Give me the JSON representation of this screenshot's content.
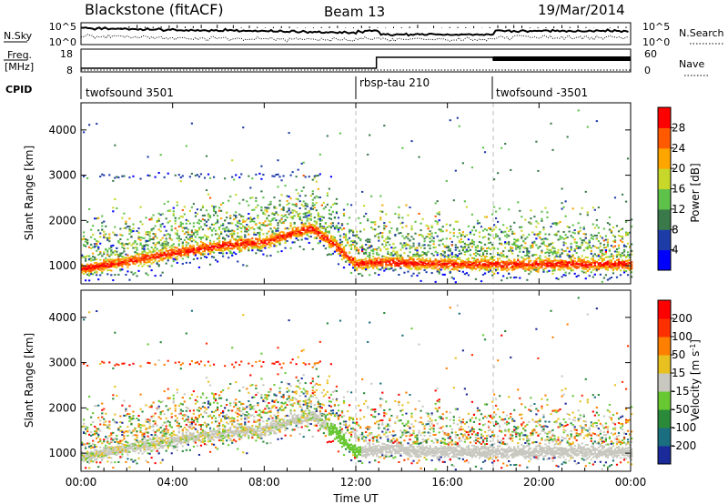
{
  "header": {
    "station": "Blackstone (fitACF)",
    "beam": "Beam 13",
    "date": "19/Mar/2014"
  },
  "nsky_panel": {
    "left_label": "N.Sky",
    "right_label": "N.Search",
    "left_ticks": [
      "10^5",
      "10^0"
    ],
    "right_ticks": [
      "10^5",
      "10^0"
    ]
  },
  "freq_panel": {
    "left_label_line1": "Freq.",
    "left_label_line2": "[MHz]",
    "left_ticks": [
      "18",
      "8"
    ],
    "right_label": "Nave",
    "right_ticks": [
      "60",
      "0"
    ]
  },
  "cpid_panel": {
    "label": "CPID",
    "segments": [
      {
        "name": "twofsound 3501",
        "start_hour": 0
      },
      {
        "name": "rbsp-tau 210",
        "start_hour": 12
      },
      {
        "name": "twofsound -3501",
        "start_hour": 18
      }
    ]
  },
  "chart_data": [
    {
      "type": "heatmap",
      "panel": "power",
      "ylabel": "Slant Range [km]",
      "xlim_hours": [
        0,
        24
      ],
      "ylim": [
        600,
        4600
      ],
      "yticks": [
        1000,
        2000,
        3000,
        4000
      ],
      "colorbar": {
        "label": "Power [dB]",
        "ticks": [
          "28",
          "24",
          "20",
          "16",
          "12",
          "8",
          "4"
        ],
        "colors": [
          "#0000ff",
          "#1e3ca8",
          "#3a7a4a",
          "#5ec24a",
          "#c8d82a",
          "#ffa500",
          "#ff5a00",
          "#ff0000"
        ]
      },
      "main_band_km": [
        {
          "hour": 0,
          "range": 950
        },
        {
          "hour": 2,
          "range": 1100
        },
        {
          "hour": 4,
          "range": 1300
        },
        {
          "hour": 6,
          "range": 1450
        },
        {
          "hour": 8,
          "range": 1550
        },
        {
          "hour": 10,
          "range": 1850
        },
        {
          "hour": 11,
          "range": 1500
        },
        {
          "hour": 12,
          "range": 1050
        },
        {
          "hour": 13,
          "range": 1100
        },
        {
          "hour": 16,
          "range": 1050
        },
        {
          "hour": 18,
          "range": 1050
        },
        {
          "hour": 24,
          "range": 1050
        }
      ]
    },
    {
      "type": "heatmap",
      "panel": "velocity",
      "ylabel": "Slant Range [km]",
      "xlabel": "Time UT",
      "xlim_hours": [
        0,
        24
      ],
      "xticks": [
        "00:00",
        "04:00",
        "08:00",
        "12:00",
        "16:00",
        "20:00",
        "00:00"
      ],
      "ylim": [
        600,
        4600
      ],
      "yticks": [
        1000,
        2000,
        3000,
        4000
      ],
      "colorbar": {
        "label": "Velocity [m s^-1]",
        "ticks": [
          "200",
          "100",
          "50",
          "15",
          "-15",
          "-50",
          "-100",
          "-200"
        ],
        "colors": [
          "#1a2a9a",
          "#1a6e80",
          "#2a8a3a",
          "#68c832",
          "#c8c8c0",
          "#e8c020",
          "#ff8000",
          "#ff3000",
          "#ff0000"
        ]
      }
    }
  ]
}
